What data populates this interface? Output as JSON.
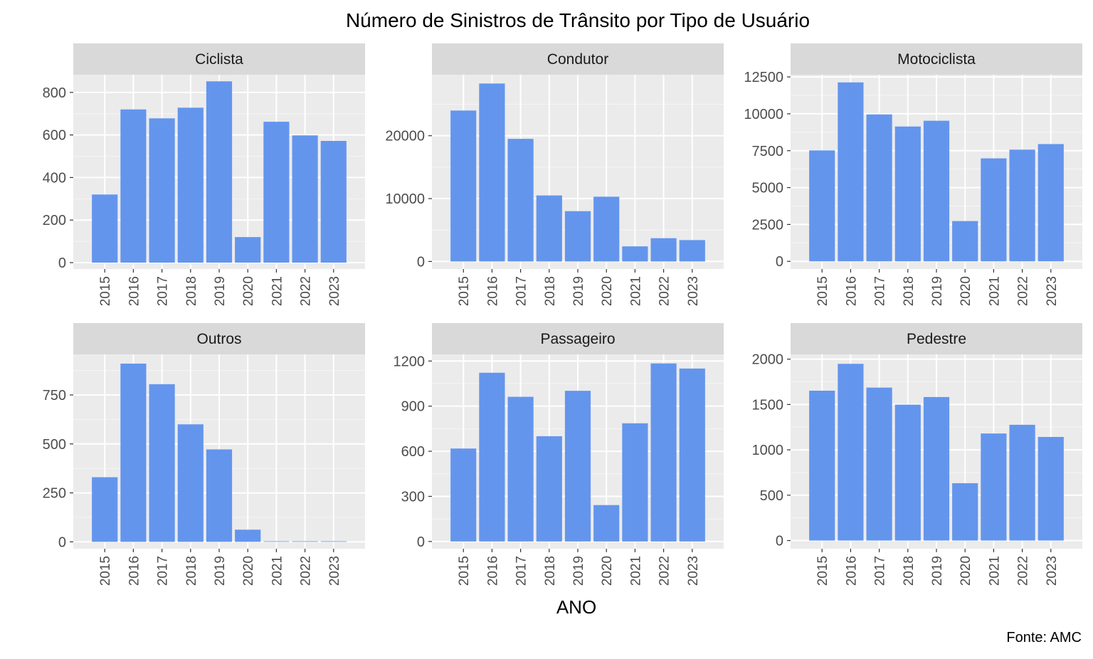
{
  "chart_data": {
    "type": "bar",
    "title": "Número de Sinistros de Trânsito por Tipo de Usuário",
    "xlabel": "ANO",
    "ylabel": "",
    "caption": "Fonte: AMC",
    "bar_color": "#6495ED",
    "panel_background": "#EBEBEB",
    "strip_background": "#D9D9D9",
    "grid": true,
    "categories": [
      "2015",
      "2016",
      "2017",
      "2018",
      "2019",
      "2020",
      "2021",
      "2022",
      "2023"
    ],
    "panels": [
      {
        "name": "Ciclista",
        "values": [
          320,
          720,
          678,
          728,
          852,
          120,
          662,
          598,
          572
        ],
        "ylim": [
          -30,
          883
        ],
        "yticks": [
          0,
          200,
          400,
          600,
          800
        ],
        "ytick_labels": [
          "0",
          "200",
          "400",
          "600",
          "800"
        ]
      },
      {
        "name": "Condutor",
        "values": [
          24000,
          28300,
          19500,
          10500,
          8000,
          10300,
          2400,
          3700,
          3400
        ],
        "ylim": [
          -1200,
          29700
        ],
        "yticks": [
          0,
          10000,
          20000
        ],
        "ytick_labels": [
          "0",
          "10000",
          "20000"
        ]
      },
      {
        "name": "Motociclista",
        "values": [
          7520,
          12130,
          9960,
          9140,
          9530,
          2730,
          6980,
          7570,
          7950
        ],
        "ylim": [
          -520,
          12650
        ],
        "yticks": [
          0,
          2500,
          5000,
          7500,
          10000,
          12500
        ],
        "ytick_labels": [
          "0",
          "2500",
          "5000",
          "7500",
          "10000",
          "12500"
        ]
      },
      {
        "name": "Outros",
        "values": [
          330,
          910,
          805,
          600,
          472,
          62,
          3,
          3,
          3
        ],
        "ylim": [
          -35,
          957
        ],
        "yticks": [
          0,
          250,
          500,
          750
        ],
        "ytick_labels": [
          "0",
          "250",
          "500",
          "750"
        ]
      },
      {
        "name": "Passageiro",
        "values": [
          618,
          1122,
          962,
          700,
          1002,
          242,
          786,
          1184,
          1150
        ],
        "ylim": [
          -48,
          1244
        ],
        "yticks": [
          0,
          300,
          600,
          900,
          1200
        ],
        "ytick_labels": [
          "0",
          "300",
          "600",
          "900",
          "1200"
        ]
      },
      {
        "name": "Pedestre",
        "values": [
          1652,
          1948,
          1686,
          1498,
          1582,
          632,
          1180,
          1276,
          1142
        ],
        "ylim": [
          -90,
          2052
        ],
        "yticks": [
          0,
          500,
          1000,
          1500,
          2000
        ],
        "ytick_labels": [
          "0",
          "500",
          "1000",
          "1500",
          "2000"
        ]
      }
    ]
  }
}
